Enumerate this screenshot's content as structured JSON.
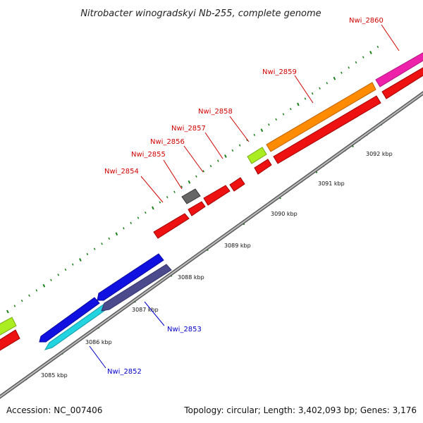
{
  "title": "Nitrobacter winogradskyi Nb-255, complete genome",
  "footer": {
    "accession": "Accession: NC_007406",
    "summary": "Topology: circular; Length: 3,402,093 bp; Genes: 3,176"
  },
  "colors": {
    "backbone": "#8a8a8a",
    "tick": "#1a7f1a",
    "forward_label": "#d00000",
    "reverse_label": "#0000cc"
  },
  "ticks": [
    {
      "label": "3085 kbp"
    },
    {
      "label": "3086 kbp"
    },
    {
      "label": "3087 kbp"
    },
    {
      "label": "3088 kbp"
    },
    {
      "label": "3089 kbp"
    },
    {
      "label": "3090 kbp"
    },
    {
      "label": "3091 kbp"
    },
    {
      "label": "3092 kbp"
    }
  ],
  "genes": [
    {
      "label": "Nwi_2852",
      "strand": "reverse"
    },
    {
      "label": "Nwi_2853",
      "strand": "reverse"
    },
    {
      "label": "Nwi_2854",
      "strand": "forward"
    },
    {
      "label": "Nwi_2855",
      "strand": "forward"
    },
    {
      "label": "Nwi_2856",
      "strand": "forward"
    },
    {
      "label": "Nwi_2857",
      "strand": "forward"
    },
    {
      "label": "Nwi_2858",
      "strand": "forward"
    },
    {
      "label": "Nwi_2859",
      "strand": "forward"
    },
    {
      "label": "Nwi_2860",
      "strand": "forward"
    }
  ]
}
